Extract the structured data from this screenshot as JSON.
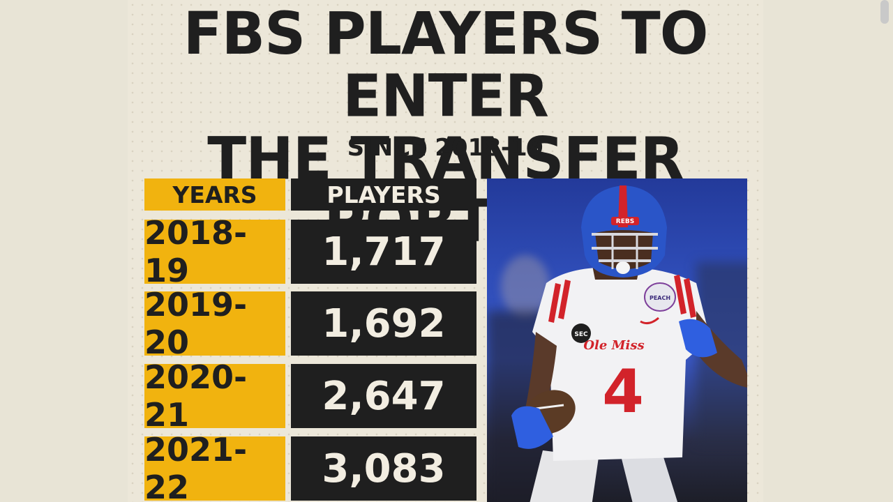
{
  "graphic": {
    "title_line1": "FBS PLAYERS TO ENTER",
    "title_line2": "THE TRANSFER PORTAL",
    "subtitle": "SINCE 2018-19"
  },
  "table": {
    "headers": {
      "years": "YEARS",
      "players": "PLAYERS"
    },
    "rows": [
      {
        "year": "2018-19",
        "players": "1,717"
      },
      {
        "year": "2019-20",
        "players": "1,692"
      },
      {
        "year": "2020-21",
        "players": "2,647"
      },
      {
        "year": "2021-22",
        "players": "3,083"
      }
    ]
  },
  "photo": {
    "helmet_text": "REBS",
    "jersey_text": "Ole Miss",
    "jersey_number": "4",
    "sleeve_text": "SEC",
    "patch_text": "PEACH"
  },
  "colors": {
    "background": "#ece7d9",
    "accent_gold": "#f1b30f",
    "dark": "#1f1f1f",
    "light_text": "#f2ede1"
  }
}
